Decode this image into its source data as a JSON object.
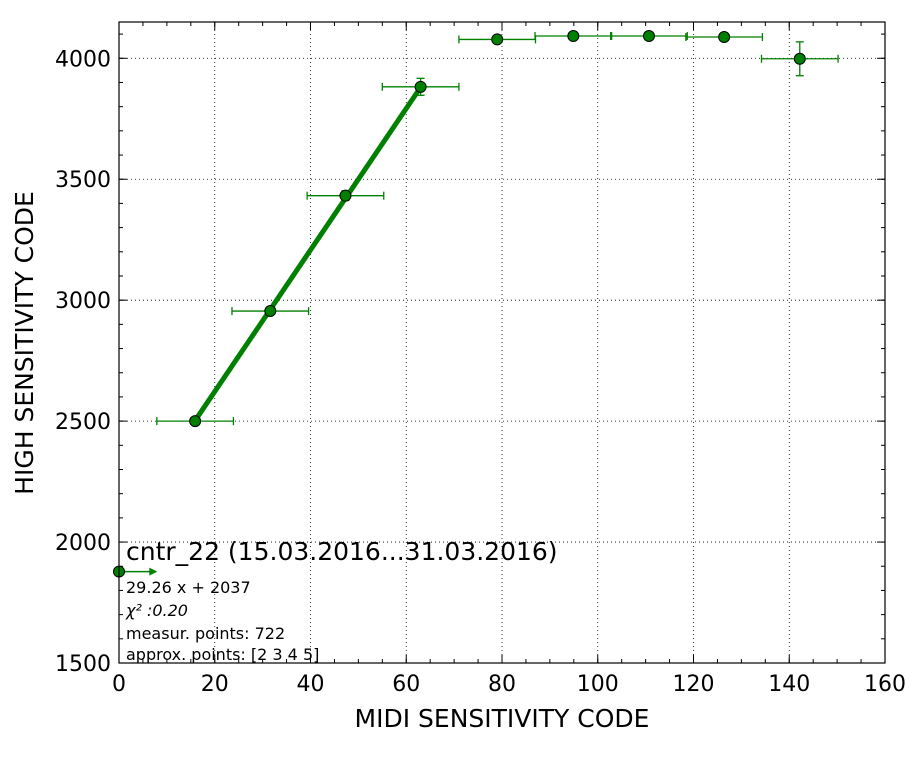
{
  "chart_data": {
    "type": "scatter",
    "title": "",
    "xlabel": "MIDI SENSITIVITY CODE",
    "ylabel": "HIGH SENSITIVITY CODE",
    "xlim": [
      0,
      160
    ],
    "ylim": [
      1500,
      4150
    ],
    "x_ticks": [
      0,
      20,
      40,
      60,
      80,
      100,
      120,
      140,
      160
    ],
    "y_ticks": [
      1500,
      2000,
      2500,
      3000,
      3500,
      4000
    ],
    "x_tick_labels": [
      "0",
      "20",
      "40",
      "60",
      "80",
      "100",
      "120",
      "140",
      "160"
    ],
    "y_tick_labels": [
      "1500",
      "2000",
      "2500",
      "3000",
      "3500",
      "4000"
    ],
    "grid": true,
    "colors": {
      "marker": "#008000",
      "errorbar": "#008000",
      "fit": "#008000"
    },
    "points": [
      {
        "x": 0.0,
        "y": 1878,
        "xerr": 0,
        "yerr": 0
      },
      {
        "x": 15.9,
        "y": 2500,
        "xerr": 8,
        "yerr": 0
      },
      {
        "x": 31.6,
        "y": 2955,
        "xerr": 8,
        "yerr": 10
      },
      {
        "x": 47.3,
        "y": 3432,
        "xerr": 8,
        "yerr": 20
      },
      {
        "x": 63.0,
        "y": 3882,
        "xerr": 8,
        "yerr": 35
      },
      {
        "x": 79.0,
        "y": 4078,
        "xerr": 8,
        "yerr": 5
      },
      {
        "x": 94.9,
        "y": 4092,
        "xerr": 8,
        "yerr": 5
      },
      {
        "x": 110.7,
        "y": 4092,
        "xerr": 8,
        "yerr": 5
      },
      {
        "x": 126.4,
        "y": 4088,
        "xerr": 8,
        "yerr": 5
      },
      {
        "x": 142.2,
        "y": 3998,
        "xerr": 8,
        "yerr": 70
      }
    ],
    "fit": {
      "slope": 29.26,
      "intercept": 2037,
      "x_range": [
        15.9,
        63.0
      ]
    },
    "arrow": {
      "x_from": 0,
      "x_to": 8,
      "y": 1878
    },
    "annotation": {
      "title": "cntr_22 (15.03.2016...31.03.2016)",
      "equation": "29.26 x + 2037",
      "chi2": "χ² :0.20",
      "measured": "measur. points: 722",
      "approx": "approx. points: [2 3 4 5]"
    }
  }
}
